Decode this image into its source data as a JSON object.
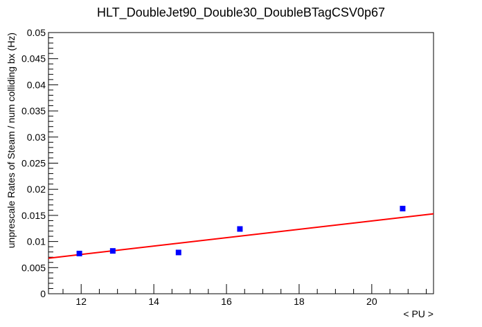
{
  "chart_data": {
    "type": "scatter",
    "title": "HLT_DoubleJet90_Double30_DoubleBTagCSV0p67",
    "xlabel": "< PU >",
    "ylabel": "unprescale Rates of Steam / num colliding bx (Hz)",
    "xlim": [
      11.1,
      21.7
    ],
    "ylim": [
      0,
      0.05
    ],
    "x_ticks": [
      12,
      14,
      16,
      18,
      20
    ],
    "x_tick_labels": [
      "12",
      "14",
      "16",
      "18",
      "20"
    ],
    "y_ticks": [
      0,
      0.005,
      0.01,
      0.015,
      0.02,
      0.025,
      0.03,
      0.035,
      0.04,
      0.045,
      0.05
    ],
    "y_tick_labels": [
      "0",
      "0.005",
      "0.01",
      "0.015",
      "0.02",
      "0.025",
      "0.03",
      "0.035",
      "0.04",
      "0.045",
      "0.05"
    ],
    "grid": false,
    "series": [
      {
        "type": "scatter",
        "color": "#0000ff",
        "points": [
          {
            "x": 11.95,
            "y": 0.0077,
            "err": 0.0003
          },
          {
            "x": 12.87,
            "y": 0.0082,
            "err": 0.0003
          },
          {
            "x": 14.68,
            "y": 0.0079,
            "err": 0.0003
          },
          {
            "x": 16.37,
            "y": 0.0124,
            "err": 0.0003
          },
          {
            "x": 20.85,
            "y": 0.0163,
            "err": 0.0005
          }
        ]
      },
      {
        "type": "line",
        "color": "#ff0000",
        "x": [
          11.1,
          21.7
        ],
        "y": [
          0.0068,
          0.0153
        ]
      }
    ]
  }
}
